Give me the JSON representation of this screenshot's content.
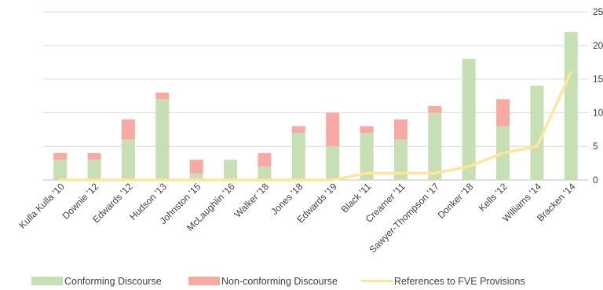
{
  "colors": {
    "conforming": "#c6e0b4",
    "nonconforming": "#f8a9a4",
    "line": "#ffe699",
    "grid": "#d9d9d9",
    "axis": "#bfbfbf",
    "text": "#404040"
  },
  "legend": {
    "conforming": "Conforming Discourse",
    "nonconforming": "Non-conforming Discourse",
    "line": "References to FVE Provisions"
  },
  "chart_data": {
    "type": "bar",
    "stacked": true,
    "y_axis_position": "right",
    "legend_position": "bottom",
    "grid": true,
    "ylim": [
      0,
      25
    ],
    "yticks": [
      0,
      5,
      10,
      15,
      20,
      25
    ],
    "categories": [
      "Kulla Kulla '10",
      "Downie '12",
      "Edwards '12",
      "Hudson '13",
      "Johnston '15",
      "McLaughlin '16",
      "Walker '18",
      "Jones '18",
      "Edwards '19",
      "Black '11",
      "Creamer '11",
      "Sawyer-Thompson '17",
      "Donker '18",
      "Kells '12",
      "Williams '14",
      "Bracken '14"
    ],
    "series": [
      {
        "name": "Conforming Discourse",
        "kind": "bar",
        "values": [
          3,
          3,
          6,
          12,
          1,
          3,
          2,
          7,
          5,
          7,
          6,
          10,
          18,
          8,
          14,
          22
        ]
      },
      {
        "name": "Non-conforming Discourse",
        "kind": "bar",
        "values": [
          1,
          1,
          3,
          1,
          2,
          0,
          2,
          1,
          5,
          1,
          3,
          1,
          0,
          4,
          0,
          0
        ]
      },
      {
        "name": "References to FVE Provisions",
        "kind": "line",
        "values": [
          0,
          0,
          0,
          0,
          0,
          0,
          0,
          0,
          0,
          1,
          1,
          1,
          2,
          4,
          5,
          16
        ]
      }
    ]
  }
}
